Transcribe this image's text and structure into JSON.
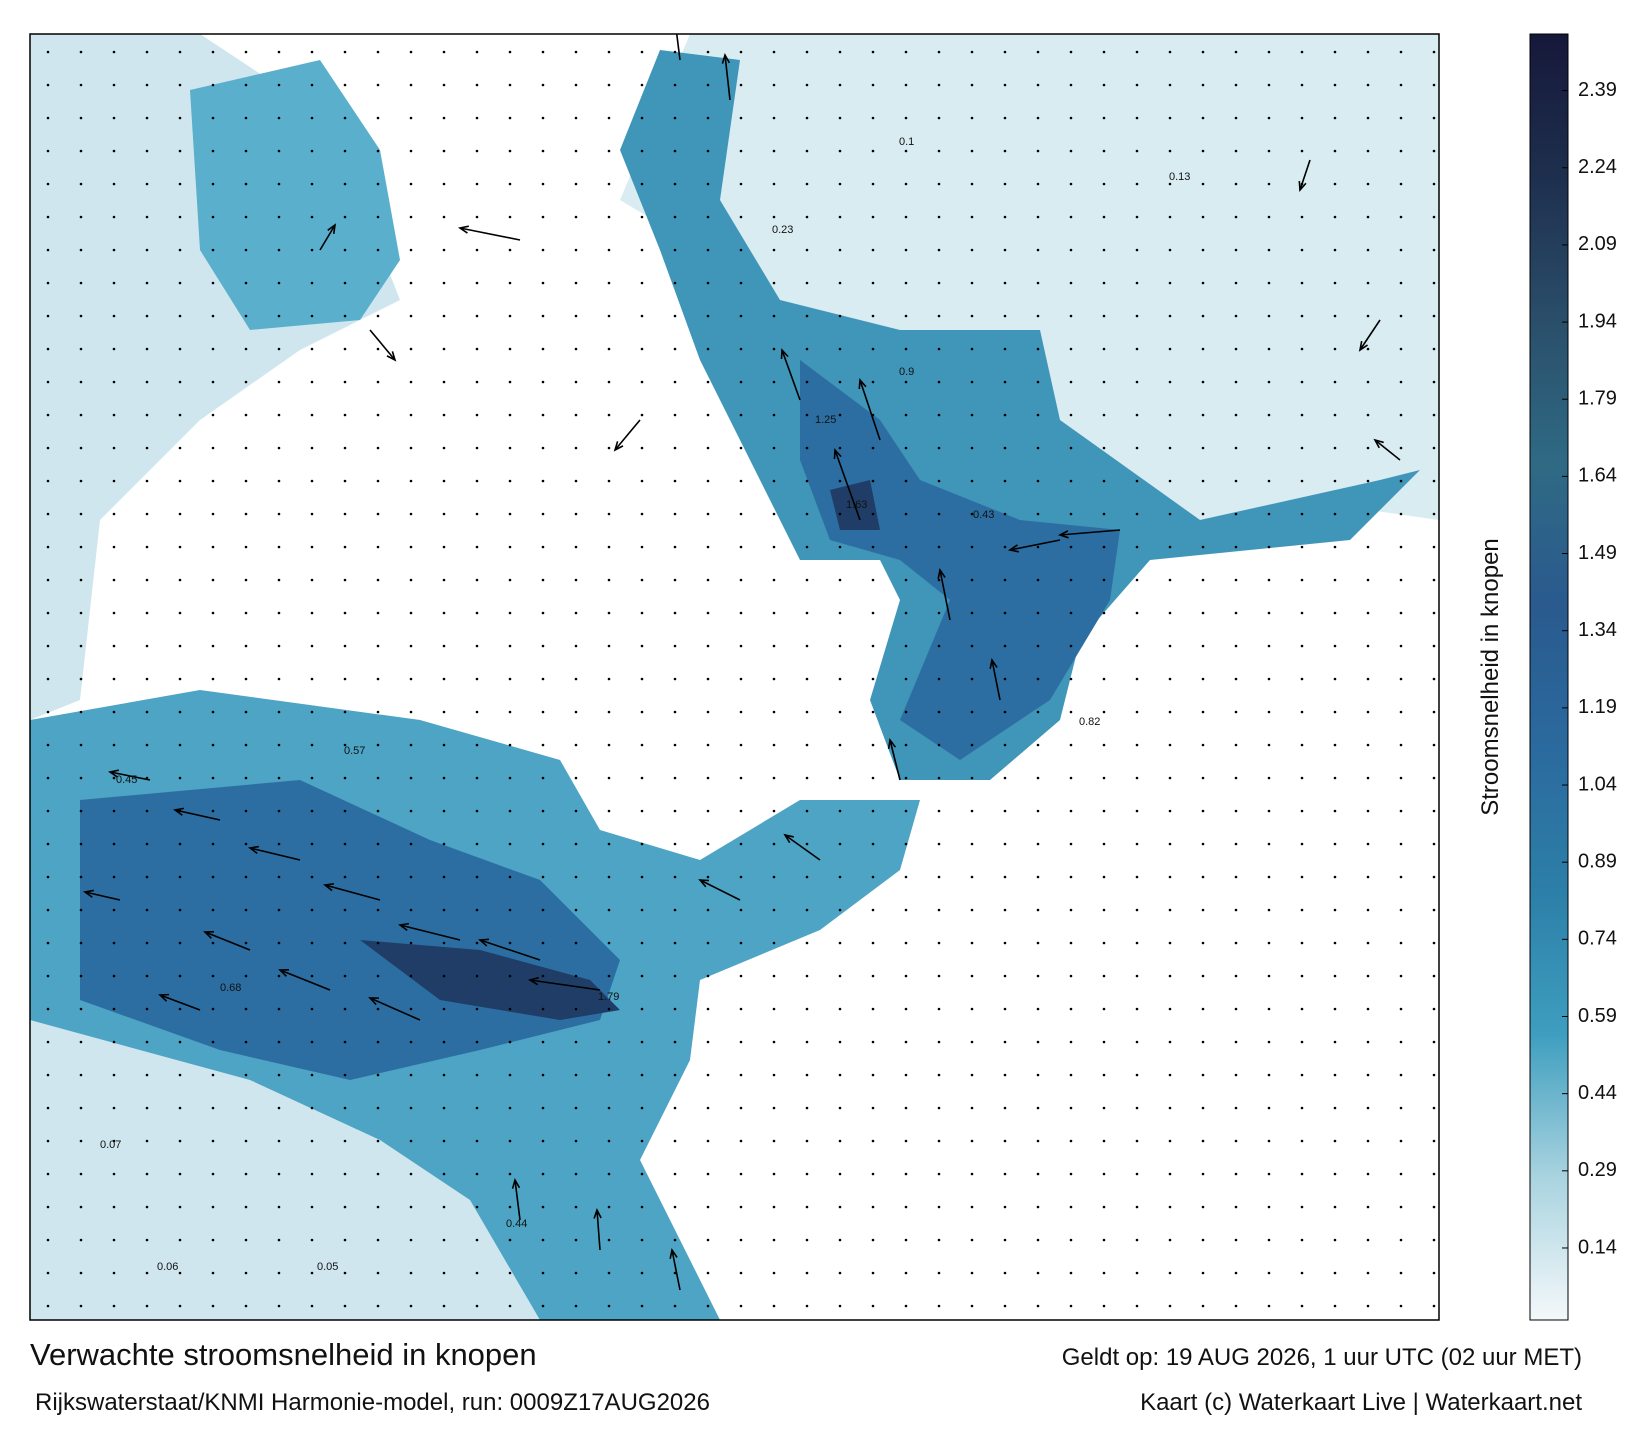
{
  "title": "Verwachte stroomsnelheid in knopen",
  "model": "Rijkswaterstaat/KNMI Harmonie-model, run: 0009Z17AUG2026",
  "valid": "Geldt op: 19 AUG 2026, 1 uur UTC (02 uur MET)",
  "credit": "Kaart (c) Waterkaart Live | Waterkaart.net",
  "colorbar": {
    "label": "Stroomsnelheid in knopen",
    "lim": [
      0,
      2.5
    ],
    "ticks": [
      0.14,
      0.29,
      0.44,
      0.59,
      0.74,
      0.89,
      1.04,
      1.19,
      1.34,
      1.49,
      1.64,
      1.79,
      1.94,
      2.09,
      2.24,
      2.39
    ],
    "colors": [
      "#f4f8fa",
      "#a9d3e0",
      "#3e9ebf",
      "#2c7fa8",
      "#2b6a9e",
      "#2a5a8e",
      "#2f6a84",
      "#2a4e6a",
      "#1e2f4e",
      "#16183a"
    ]
  },
  "labels": [
    "0.57",
    "1.79",
    "1.63",
    "0.9",
    "0.45",
    "0.68",
    "1.25",
    "0.82",
    "0.43",
    "0.05",
    "0.07",
    "0.13",
    "0.23",
    "0.1",
    "0.44",
    "0.06"
  ]
}
